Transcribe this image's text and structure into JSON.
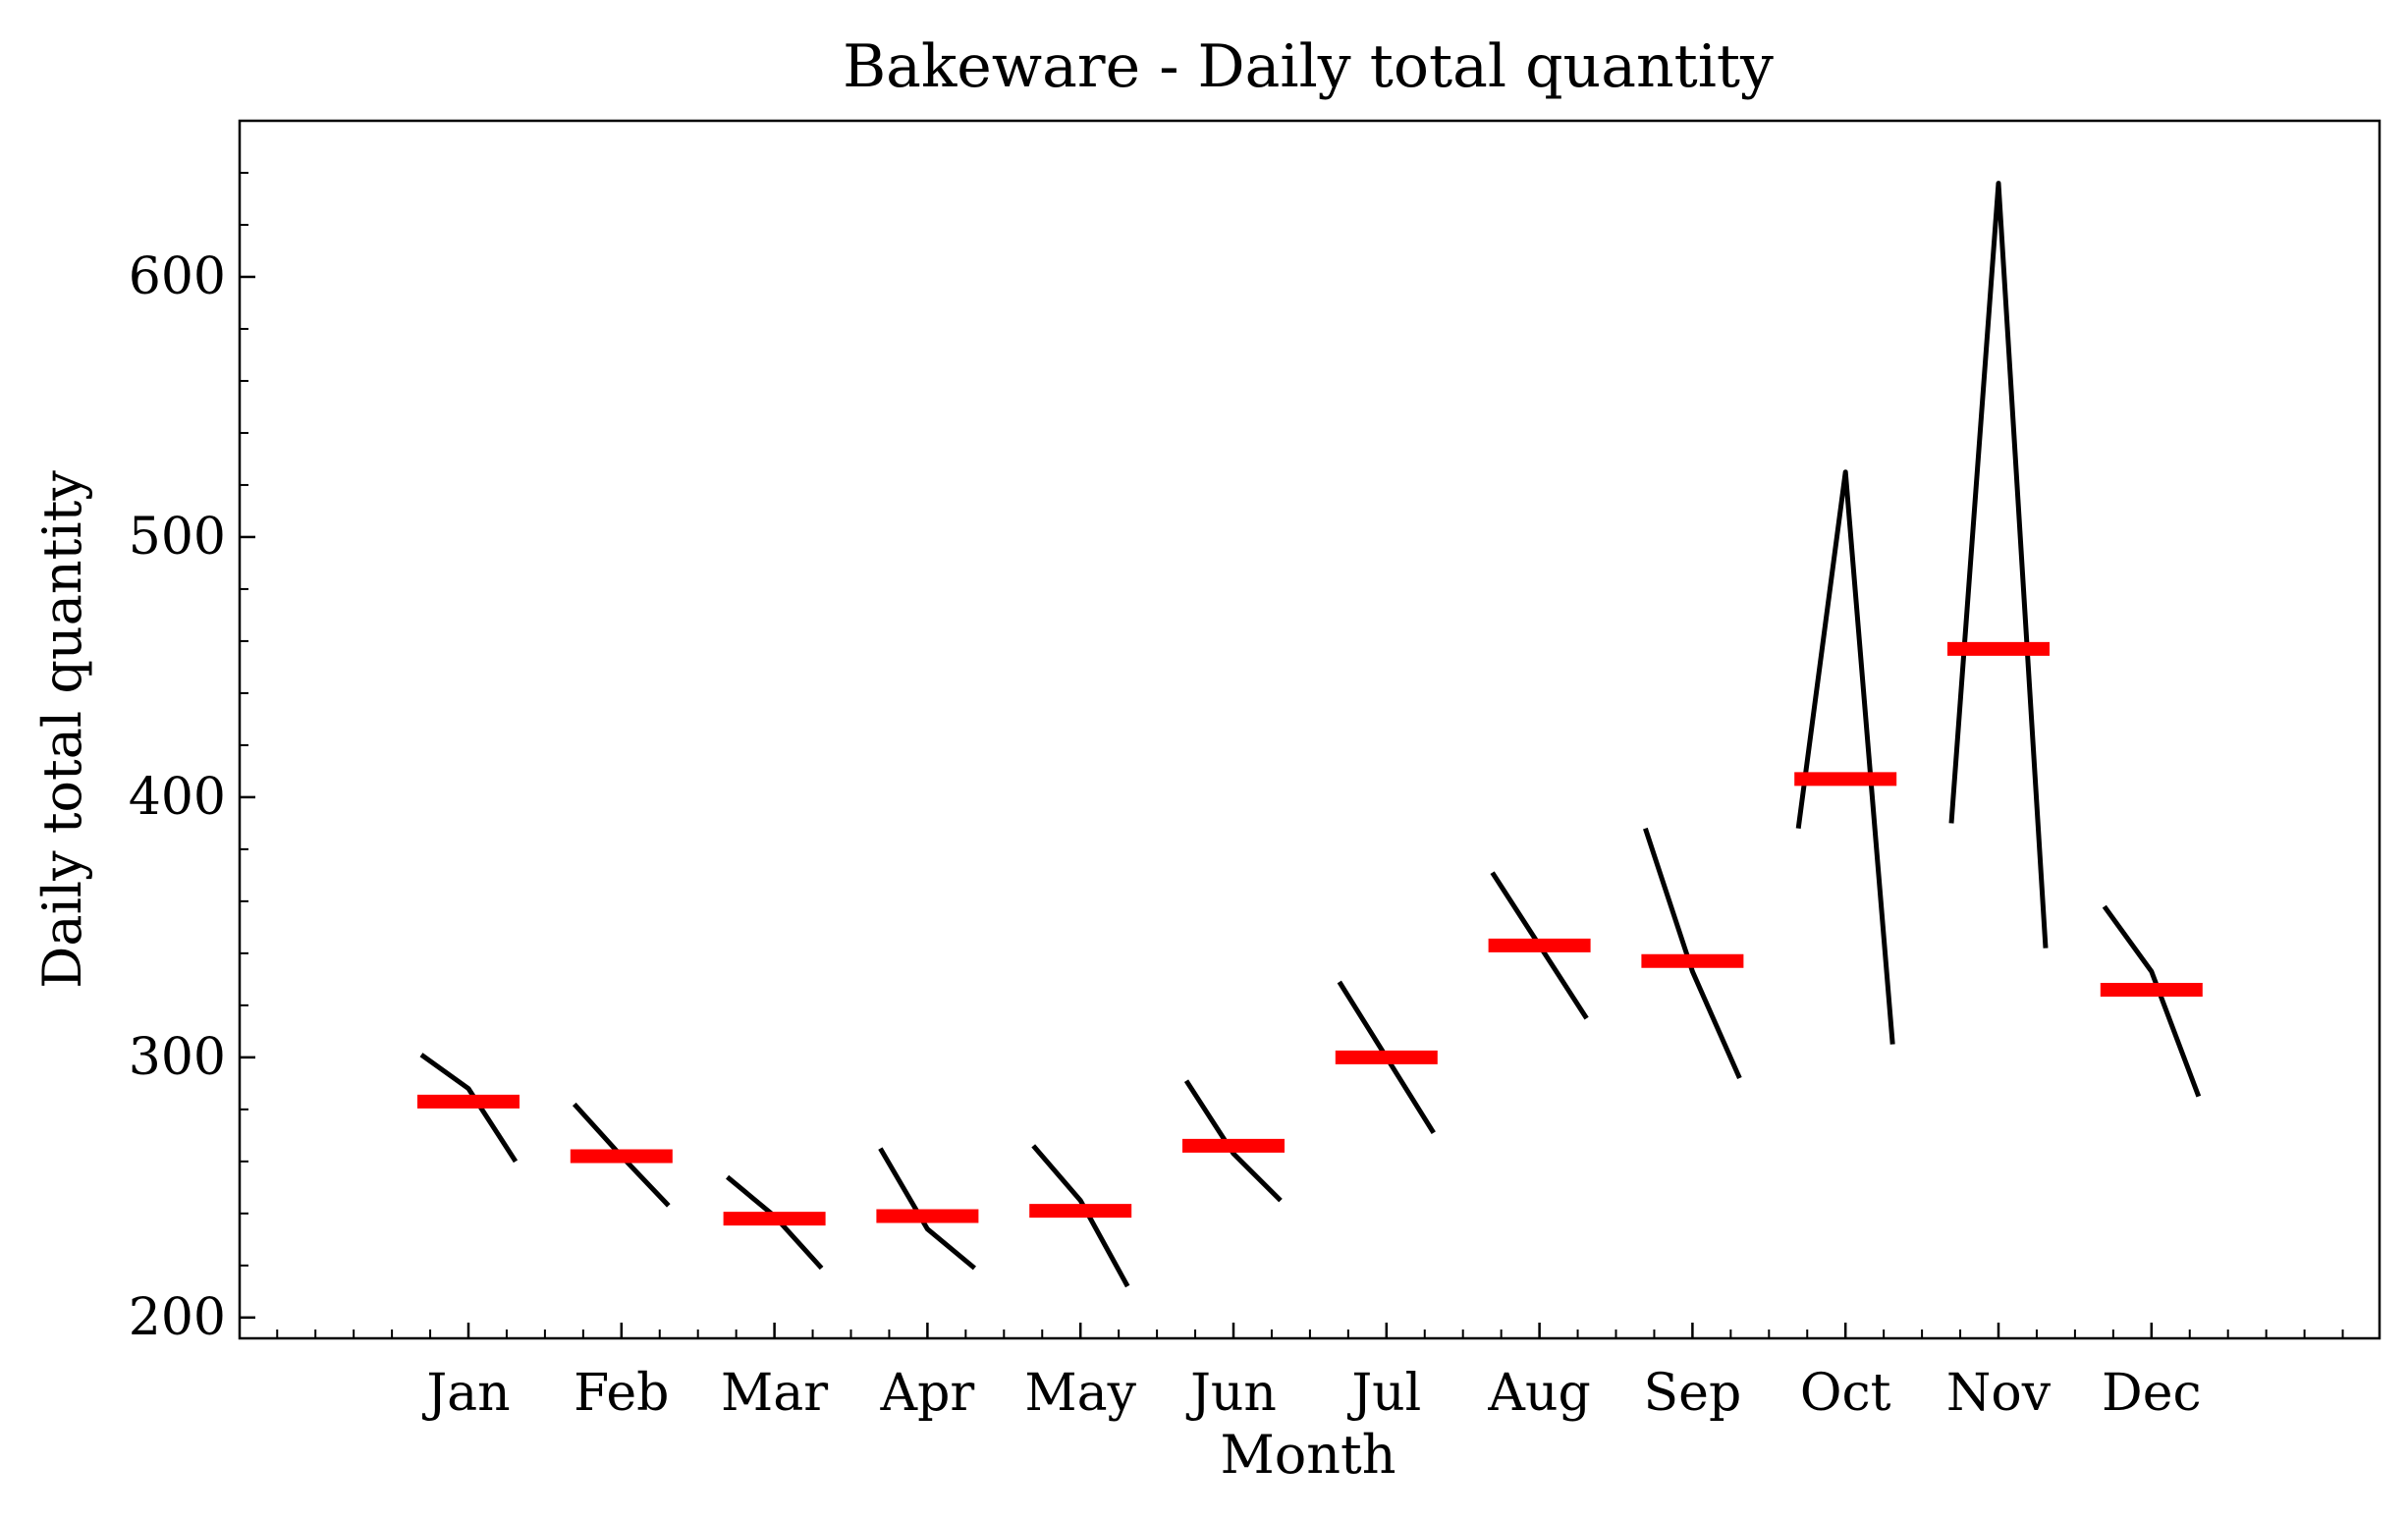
{
  "chart_data": {
    "type": "line",
    "title": "Bakeware - Daily total quantity",
    "xlabel": "Month",
    "ylabel": "Daily total quantity",
    "categories": [
      "Jan",
      "Feb",
      "Mar",
      "Apr",
      "May",
      "Jun",
      "Jul",
      "Aug",
      "Sep",
      "Oct",
      "Nov",
      "Dec"
    ],
    "ylim": [
      192,
      660
    ],
    "yticks": [
      200,
      300,
      400,
      500,
      600
    ],
    "ytick_labels": [
      "200",
      "300",
      "400",
      "500",
      "600"
    ],
    "grid": false,
    "legend": "none",
    "subseries": [
      {
        "month": "Jan",
        "values": [
          301,
          288,
          260
        ],
        "mean": 283
      },
      {
        "month": "Feb",
        "values": [
          282,
          262,
          243
        ],
        "mean": 262
      },
      {
        "month": "Mar",
        "values": [
          254,
          239,
          219
        ],
        "mean": 238
      },
      {
        "month": "Apr",
        "values": [
          265,
          234,
          219
        ],
        "mean": 239
      },
      {
        "month": "May",
        "values": [
          266,
          245,
          212
        ],
        "mean": 241
      },
      {
        "month": "Jun",
        "values": [
          291,
          263,
          245
        ],
        "mean": 266
      },
      {
        "month": "Jul",
        "values": [
          329,
          300,
          271
        ],
        "mean": 300
      },
      {
        "month": "Aug",
        "values": [
          371,
          343,
          315
        ],
        "mean": 343
      },
      {
        "month": "Sep",
        "values": [
          388,
          333,
          292
        ],
        "mean": 337
      },
      {
        "month": "Oct",
        "values": [
          388,
          525,
          305
        ],
        "mean": 407
      },
      {
        "month": "Nov",
        "values": [
          390,
          636,
          342
        ],
        "mean": 457
      },
      {
        "month": "Dec",
        "values": [
          358,
          333,
          285
        ],
        "mean": 326
      }
    ],
    "colors": {
      "line": "#000000",
      "mean": "#ff0000"
    }
  }
}
